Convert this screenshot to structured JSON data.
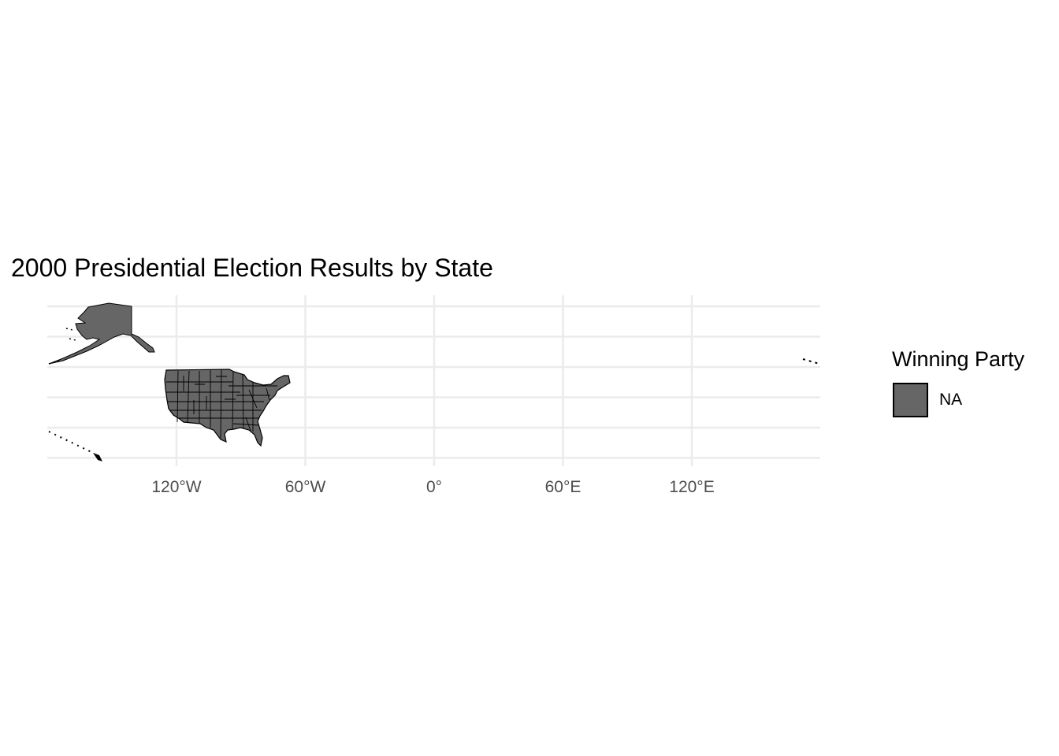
{
  "chart_data": {
    "type": "map",
    "title": "2000 Presidential Election Results by State",
    "projection": "longitude-latitude",
    "xlim": [
      -180,
      180
    ],
    "ylim": [
      18,
      72
    ],
    "x_ticks": [
      {
        "value": -120,
        "label": "120°W"
      },
      {
        "value": -60,
        "label": "60°W"
      },
      {
        "value": 0,
        "label": "0°"
      },
      {
        "value": 60,
        "label": "60°E"
      },
      {
        "value": 120,
        "label": "120°E"
      }
    ],
    "y_grid": [
      20,
      30,
      40,
      50,
      60,
      70
    ],
    "grid": true,
    "regions": [
      {
        "name": "Contiguous United States",
        "fill": "#666666"
      },
      {
        "name": "Alaska",
        "fill": "#666666"
      },
      {
        "name": "Hawaii",
        "fill": "#000000"
      }
    ],
    "legend": {
      "title": "Winning Party",
      "position": "right",
      "entries": [
        {
          "label": "NA",
          "color": "#666666"
        }
      ]
    }
  }
}
